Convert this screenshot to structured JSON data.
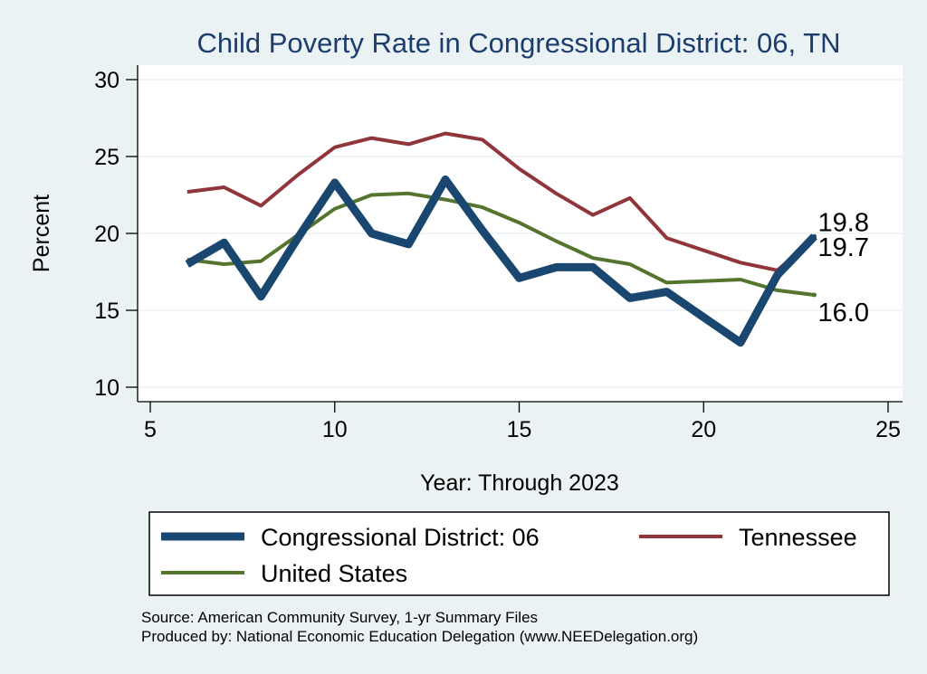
{
  "chart_data": {
    "type": "line",
    "title": "Child Poverty Rate in Congressional District:  06, TN",
    "xlabel": "Year: Through 2023",
    "ylabel": "Percent",
    "xlim": [
      5,
      25
    ],
    "ylim": [
      10,
      30
    ],
    "xticks": [
      5,
      10,
      15,
      20,
      25
    ],
    "yticks": [
      10,
      15,
      20,
      25,
      30
    ],
    "grid": true,
    "legend_position": "bottom",
    "series": [
      {
        "name": "Congressional District:  06",
        "color": "#1a476f",
        "x": [
          6,
          7,
          8,
          9,
          10,
          11,
          12,
          13,
          14,
          15,
          16,
          17,
          18,
          19,
          21,
          22,
          23
        ],
        "y": [
          18.0,
          19.4,
          15.9,
          19.7,
          23.3,
          20.0,
          19.3,
          23.5,
          20.2,
          17.1,
          17.8,
          17.8,
          15.8,
          16.2,
          12.9,
          17.3,
          19.8
        ],
        "end_label": "19.8"
      },
      {
        "name": "Tennessee",
        "color": "#90353b",
        "x": [
          6,
          7,
          8,
          9,
          10,
          11,
          12,
          13,
          14,
          15,
          16,
          17,
          18,
          19,
          21,
          22,
          23
        ],
        "y": [
          22.7,
          23.0,
          21.8,
          23.8,
          25.6,
          26.2,
          25.8,
          26.5,
          26.1,
          24.2,
          22.6,
          21.2,
          22.3,
          19.7,
          18.1,
          17.6,
          19.7
        ],
        "end_label": "19.7"
      },
      {
        "name": "United States",
        "color": "#55752f",
        "x": [
          6,
          7,
          8,
          9,
          10,
          11,
          12,
          13,
          14,
          15,
          16,
          17,
          18,
          19,
          21,
          22,
          23
        ],
        "y": [
          18.3,
          18.0,
          18.2,
          19.9,
          21.6,
          22.5,
          22.6,
          22.2,
          21.7,
          20.7,
          19.5,
          18.4,
          18.0,
          16.8,
          17.0,
          16.3,
          16.0
        ],
        "end_label": "16.0"
      }
    ],
    "notes": [
      "Source: American Community Survey, 1-yr Summary Files",
      "Produced by: National Economic Education Delegation (www.NEEDelegation.org)"
    ]
  }
}
